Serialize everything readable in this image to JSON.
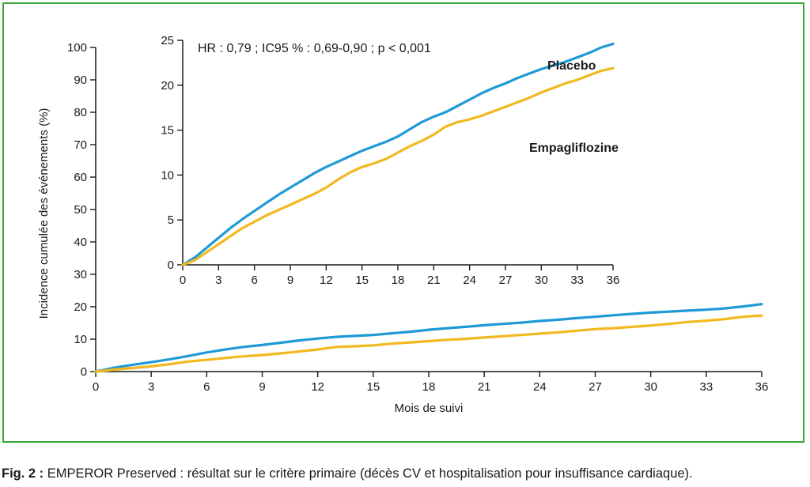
{
  "figure": {
    "border_color": "#3aa63a",
    "caption_label": "Fig. 2 :",
    "caption_text": " EMPEROR Preserved : résultat sur le critère primaire (décès CV et hospitalisation pour insuffisance cardiaque)."
  },
  "chart_data": [
    {
      "type": "line",
      "role": "main",
      "title": "",
      "xlabel": "Mois de suivi",
      "ylabel": "Incidence cumulée des événements (%)",
      "xlim": [
        0,
        36
      ],
      "ylim": [
        0,
        100
      ],
      "xticks": [
        0,
        3,
        6,
        9,
        12,
        15,
        18,
        21,
        24,
        27,
        30,
        33,
        36
      ],
      "yticks": [
        0,
        10,
        20,
        30,
        40,
        50,
        60,
        70,
        80,
        90,
        100
      ],
      "grid": false,
      "series": [
        {
          "name": "Placebo",
          "color": "#1f9ad6",
          "x": [
            0,
            1,
            2,
            3,
            4,
            5,
            6,
            7,
            8,
            9,
            10,
            11,
            12,
            13,
            14,
            15,
            16,
            17,
            18,
            19,
            20,
            21,
            22,
            23,
            24,
            25,
            26,
            27,
            28,
            29,
            30,
            31,
            32,
            33,
            34,
            35,
            36
          ],
          "y": [
            0,
            1.2,
            2.1,
            2.9,
            3.8,
            4.8,
            5.9,
            6.8,
            7.6,
            8.2,
            8.9,
            9.6,
            10.2,
            10.7,
            11.0,
            11.3,
            11.8,
            12.3,
            12.9,
            13.4,
            13.8,
            14.3,
            14.7,
            15.1,
            15.6,
            16.0,
            16.5,
            16.9,
            17.4,
            17.8,
            18.2,
            18.5,
            18.8,
            19.1,
            19.5,
            20.1,
            20.8
          ]
        },
        {
          "name": "Empagliflozine",
          "color": "#f2b81e",
          "x": [
            0,
            1,
            2,
            3,
            4,
            5,
            6,
            7,
            8,
            9,
            10,
            11,
            12,
            13,
            14,
            15,
            16,
            17,
            18,
            19,
            20,
            21,
            22,
            23,
            24,
            25,
            26,
            27,
            28,
            29,
            30,
            31,
            32,
            33,
            34,
            35,
            36
          ],
          "y": [
            0,
            0.6,
            1.1,
            1.6,
            2.3,
            3.1,
            3.6,
            4.2,
            4.7,
            5.1,
            5.6,
            6.2,
            6.8,
            7.6,
            7.8,
            8.1,
            8.6,
            9.0,
            9.4,
            9.8,
            10.1,
            10.5,
            10.9,
            11.3,
            11.7,
            12.1,
            12.6,
            13.1,
            13.4,
            13.8,
            14.2,
            14.7,
            15.3,
            15.7,
            16.2,
            16.9,
            17.3
          ]
        }
      ]
    },
    {
      "type": "line",
      "role": "inset",
      "title": "",
      "annotation": "HR : 0,79 ; IC95 % : 0,69-0,90 ; p < 0,001",
      "xlim": [
        0,
        36
      ],
      "ylim": [
        0,
        25
      ],
      "xticks": [
        0,
        3,
        6,
        9,
        12,
        15,
        18,
        21,
        24,
        27,
        30,
        33,
        36
      ],
      "yticks": [
        0,
        5,
        10,
        15,
        20,
        25
      ],
      "grid": false,
      "series": [
        {
          "name": "Placebo",
          "color": "#1f9ad6",
          "x": [
            0,
            1,
            2,
            3,
            4,
            5,
            6,
            7,
            8,
            9,
            10,
            11,
            12,
            13,
            14,
            15,
            16,
            17,
            18,
            19,
            20,
            21,
            22,
            23,
            24,
            25,
            26,
            27,
            28,
            29,
            30,
            31,
            32,
            33,
            34,
            35,
            36
          ],
          "y": [
            0,
            0.8,
            1.9,
            3.0,
            4.1,
            5.1,
            6.0,
            6.9,
            7.8,
            8.6,
            9.4,
            10.2,
            10.9,
            11.5,
            12.1,
            12.7,
            13.2,
            13.7,
            14.3,
            15.1,
            15.9,
            16.5,
            17.0,
            17.7,
            18.4,
            19.1,
            19.7,
            20.2,
            20.8,
            21.3,
            21.8,
            22.2,
            22.6,
            23.1,
            23.6,
            24.2,
            24.6
          ]
        },
        {
          "name": "Empagliflozine",
          "color": "#f2b81e",
          "x": [
            0,
            1,
            2,
            3,
            4,
            5,
            6,
            7,
            8,
            9,
            10,
            11,
            12,
            13,
            14,
            15,
            16,
            17,
            18,
            19,
            20,
            21,
            22,
            23,
            24,
            25,
            26,
            27,
            28,
            29,
            30,
            31,
            32,
            33,
            34,
            35,
            36
          ],
          "y": [
            0,
            0.5,
            1.4,
            2.3,
            3.2,
            4.1,
            4.8,
            5.5,
            6.1,
            6.7,
            7.3,
            7.9,
            8.6,
            9.5,
            10.3,
            10.9,
            11.3,
            11.8,
            12.5,
            13.2,
            13.8,
            14.5,
            15.4,
            15.9,
            16.2,
            16.6,
            17.1,
            17.6,
            18.1,
            18.6,
            19.2,
            19.7,
            20.2,
            20.6,
            21.1,
            21.6,
            21.9
          ]
        }
      ]
    }
  ]
}
